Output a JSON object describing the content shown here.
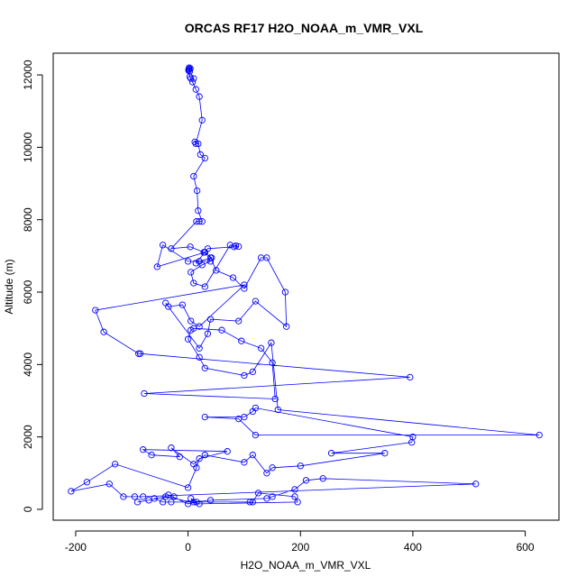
{
  "chart_data": {
    "type": "line",
    "title": "ORCAS RF17 H2O_NOAA_m_VMR_VXL",
    "xlabel": "H2O_NOAA_m_VMR_VXL",
    "ylabel": "Altitude (m)",
    "xlim": [
      -240,
      660
    ],
    "ylim": [
      -300,
      12600
    ],
    "xticks": [
      -200,
      0,
      200,
      400,
      600
    ],
    "yticks": [
      0,
      2000,
      4000,
      6000,
      8000,
      10000,
      12000
    ],
    "grid": false,
    "legend": "none",
    "series": [
      {
        "color": "#0000ff",
        "marker": "open-circle",
        "x": [
          1,
          2,
          3,
          4,
          2,
          1,
          3,
          5,
          10,
          8,
          14,
          20,
          25,
          14,
          12,
          18,
          22,
          30,
          10,
          16,
          18,
          25,
          20,
          15,
          -30,
          4,
          28,
          42,
          20,
          14,
          30,
          -55,
          -45,
          0,
          40,
          25,
          5,
          10,
          30,
          75,
          85,
          90,
          82,
          35,
          30,
          40,
          50,
          80,
          100,
          130,
          140,
          173,
          175,
          120,
          90,
          40,
          35,
          20,
          -40,
          -35,
          -10,
          5,
          20,
          100,
          -165,
          -150,
          -88,
          -85,
          395,
          -78,
          155,
          150,
          130,
          95,
          60,
          10,
          5,
          0,
          20,
          30,
          100,
          115,
          148,
          160,
          625,
          120,
          90,
          30,
          100,
          115,
          120,
          400,
          398,
          255,
          350,
          200,
          150,
          140,
          115,
          100,
          30,
          10,
          -30,
          -15,
          -65,
          -80,
          70,
          20,
          15,
          0,
          -130,
          -180,
          -208,
          -140,
          -115,
          -95,
          -80,
          512,
          240,
          210,
          190,
          150,
          140,
          40,
          10,
          5,
          15,
          0,
          -35,
          -25,
          -60,
          -45,
          -30,
          110,
          115,
          125,
          190,
          195,
          20,
          -40,
          -70,
          -90
        ],
        "y": [
          12150,
          12200,
          12100,
          12180,
          12160,
          12120,
          11950,
          11900,
          11900,
          11800,
          11600,
          11400,
          10750,
          10100,
          10150,
          10100,
          9800,
          9700,
          9200,
          8800,
          8250,
          7950,
          7950,
          7950,
          7200,
          7250,
          7100,
          6950,
          6850,
          6800,
          7100,
          6700,
          7300,
          6850,
          6850,
          6750,
          6550,
          6250,
          6150,
          7300,
          7280,
          7260,
          7250,
          7200,
          7100,
          6950,
          6600,
          6400,
          6100,
          6950,
          6950,
          6000,
          5050,
          5750,
          5200,
          5250,
          4850,
          4450,
          5700,
          5600,
          5650,
          5200,
          5050,
          6200,
          5500,
          4900,
          4300,
          4300,
          3650,
          3200,
          3050,
          4050,
          4450,
          4650,
          4950,
          5000,
          4950,
          4700,
          4200,
          3900,
          3700,
          3800,
          4600,
          2750,
          2050,
          2050,
          2500,
          2550,
          2550,
          2700,
          2800,
          2000,
          1850,
          1550,
          1550,
          1200,
          1150,
          1000,
          1500,
          1300,
          1500,
          1250,
          1700,
          1450,
          1500,
          1650,
          1600,
          1400,
          1150,
          600,
          1250,
          750,
          500,
          700,
          350,
          350,
          350,
          700,
          850,
          800,
          550,
          350,
          300,
          250,
          200,
          300,
          200,
          150,
          400,
          350,
          300,
          200,
          200,
          200,
          200,
          450,
          350,
          200,
          150,
          350,
          250,
          200
        ]
      }
    ]
  }
}
